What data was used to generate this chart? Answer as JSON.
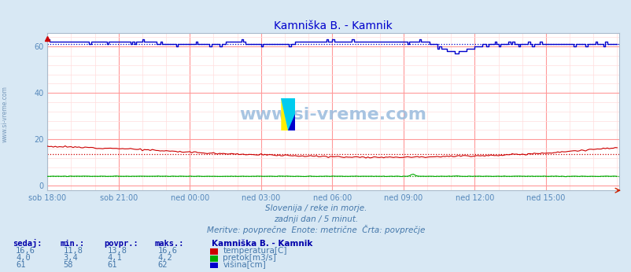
{
  "title": "Kamniška B. - Kamnik",
  "background_color": "#d8e8f4",
  "plot_bg_color": "#ffffff",
  "grid_color_major": "#ff9999",
  "grid_color_minor": "#ffdddd",
  "xlabel_ticks": [
    "sob 18:00",
    "sob 21:00",
    "ned 00:00",
    "ned 03:00",
    "ned 06:00",
    "ned 09:00",
    "ned 12:00",
    "ned 15:00"
  ],
  "ylabel_ticks": [
    0,
    20,
    40,
    60
  ],
  "ylim": [
    -2,
    66
  ],
  "xlim": [
    0,
    289
  ],
  "subtitle1": "Slovenija / reke in morje.",
  "subtitle2": "zadnji dan / 5 minut.",
  "subtitle3": "Meritve: povprečne  Enote: metrične  Črta: povprečje",
  "watermark": "www.si-vreme.com",
  "legend_title": "Kamniška B. - Kamnik",
  "legend_items": [
    {
      "label": "temperatura[C]",
      "color": "#cc0000"
    },
    {
      "label": "pretok[m3/s]",
      "color": "#00aa00"
    },
    {
      "label": "višina[cm]",
      "color": "#0000cc"
    }
  ],
  "table_headers": [
    "sedaj:",
    "min.:",
    "povpr.:",
    "maks.:"
  ],
  "table_rows": [
    [
      "16,6",
      "11,8",
      "13,8",
      "16,6"
    ],
    [
      "4,0",
      "3,4",
      "4,1",
      "4,2"
    ],
    [
      "61",
      "58",
      "61",
      "62"
    ]
  ],
  "temp_color": "#cc0000",
  "flow_color": "#00aa00",
  "height_color": "#0000cc",
  "avg_temp": 13.8,
  "avg_flow": 4.1,
  "avg_height": 61,
  "n_points": 289,
  "tick_color": "#5588bb",
  "title_color": "#0000cc",
  "text_color": "#4477aa",
  "header_color": "#0000aa"
}
